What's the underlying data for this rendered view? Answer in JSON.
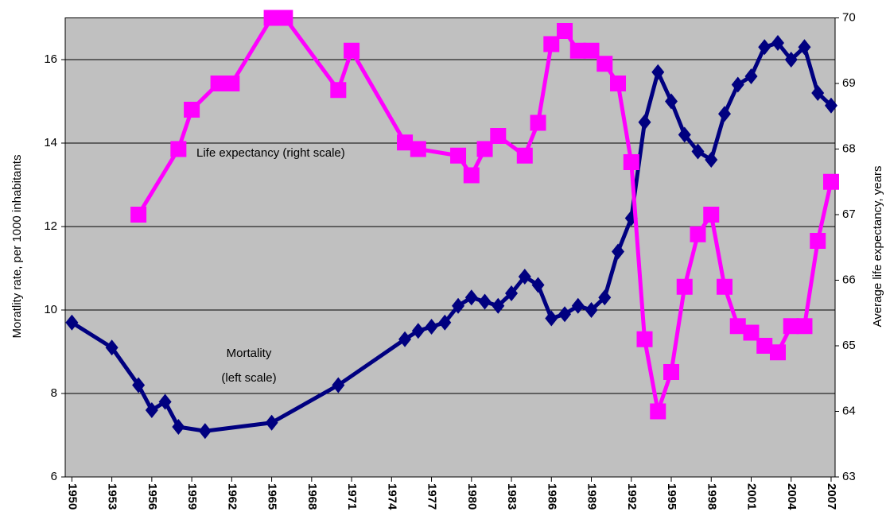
{
  "chart_data": {
    "type": "line",
    "y_label": "Moratlity rate, per 1000 inhabitants",
    "y2_label": "Average life expectancy, years",
    "annotations": [
      "Life expectancy  (right scale)",
      "Mortality",
      "(left scale)"
    ],
    "xlim": [
      1949.5,
      2007.3
    ],
    "xticks": [
      1950,
      1953,
      1956,
      1959,
      1962,
      1965,
      1968,
      1971,
      1974,
      1977,
      1980,
      1983,
      1986,
      1989,
      1992,
      1995,
      1998,
      2001,
      2004,
      2007
    ],
    "ylim": [
      6,
      17
    ],
    "yticks": [
      6,
      8,
      10,
      12,
      14,
      16
    ],
    "y2lim": [
      63,
      70
    ],
    "y2ticks": [
      63,
      64,
      65,
      66,
      67,
      68,
      69,
      70
    ],
    "grid": true,
    "background": "#c0c0c0",
    "series": [
      {
        "color": "#000080",
        "marker": "diamond",
        "axis": "y",
        "x": [
          1950,
          1953,
          1955,
          1956,
          1957,
          1958,
          1960,
          1965,
          1970,
          1975,
          1976,
          1977,
          1978,
          1979,
          1980,
          1981,
          1982,
          1983,
          1984,
          1985,
          1986,
          1987,
          1988,
          1989,
          1990,
          1991,
          1992,
          1993,
          1994,
          1995,
          1996,
          1997,
          1998,
          1999,
          2000,
          2001,
          2002,
          2003,
          2004,
          2005,
          2006,
          2007
        ],
        "values": [
          9.7,
          9.1,
          8.2,
          7.6,
          7.8,
          7.2,
          7.1,
          7.3,
          8.2,
          9.3,
          9.5,
          9.6,
          9.7,
          10.1,
          10.3,
          10.2,
          10.1,
          10.4,
          10.8,
          10.6,
          9.8,
          9.9,
          10.1,
          10.0,
          10.3,
          11.4,
          12.2,
          14.5,
          15.7,
          15.0,
          14.2,
          13.8,
          13.6,
          14.7,
          15.4,
          15.6,
          16.3,
          16.4,
          16.0,
          16.3,
          15.2,
          14.9
        ]
      },
      {
        "color": "#ff00ff",
        "marker": "square",
        "axis": "y2",
        "x": [
          1955,
          1958,
          1959,
          1961,
          1962,
          1965,
          1966,
          1970,
          1971,
          1975,
          1976,
          1979,
          1980,
          1981,
          1982,
          1984,
          1985,
          1986,
          1987,
          1988,
          1989,
          1990,
          1991,
          1992,
          1993,
          1994,
          1995,
          1996,
          1997,
          1998,
          1999,
          2000,
          2001,
          2002,
          2003,
          2004,
          2005,
          2006,
          2007
        ],
        "values": [
          67.0,
          68.0,
          68.6,
          69.0,
          69.0,
          70.0,
          70.0,
          68.9,
          69.5,
          68.1,
          68.0,
          67.9,
          67.6,
          68.0,
          68.2,
          67.9,
          68.4,
          69.6,
          69.8,
          69.5,
          69.5,
          69.3,
          69.0,
          67.8,
          65.1,
          64.0,
          64.6,
          65.9,
          66.7,
          67.0,
          65.9,
          65.3,
          65.2,
          65.0,
          64.9,
          65.3,
          65.3,
          66.6,
          67.5
        ]
      }
    ]
  }
}
